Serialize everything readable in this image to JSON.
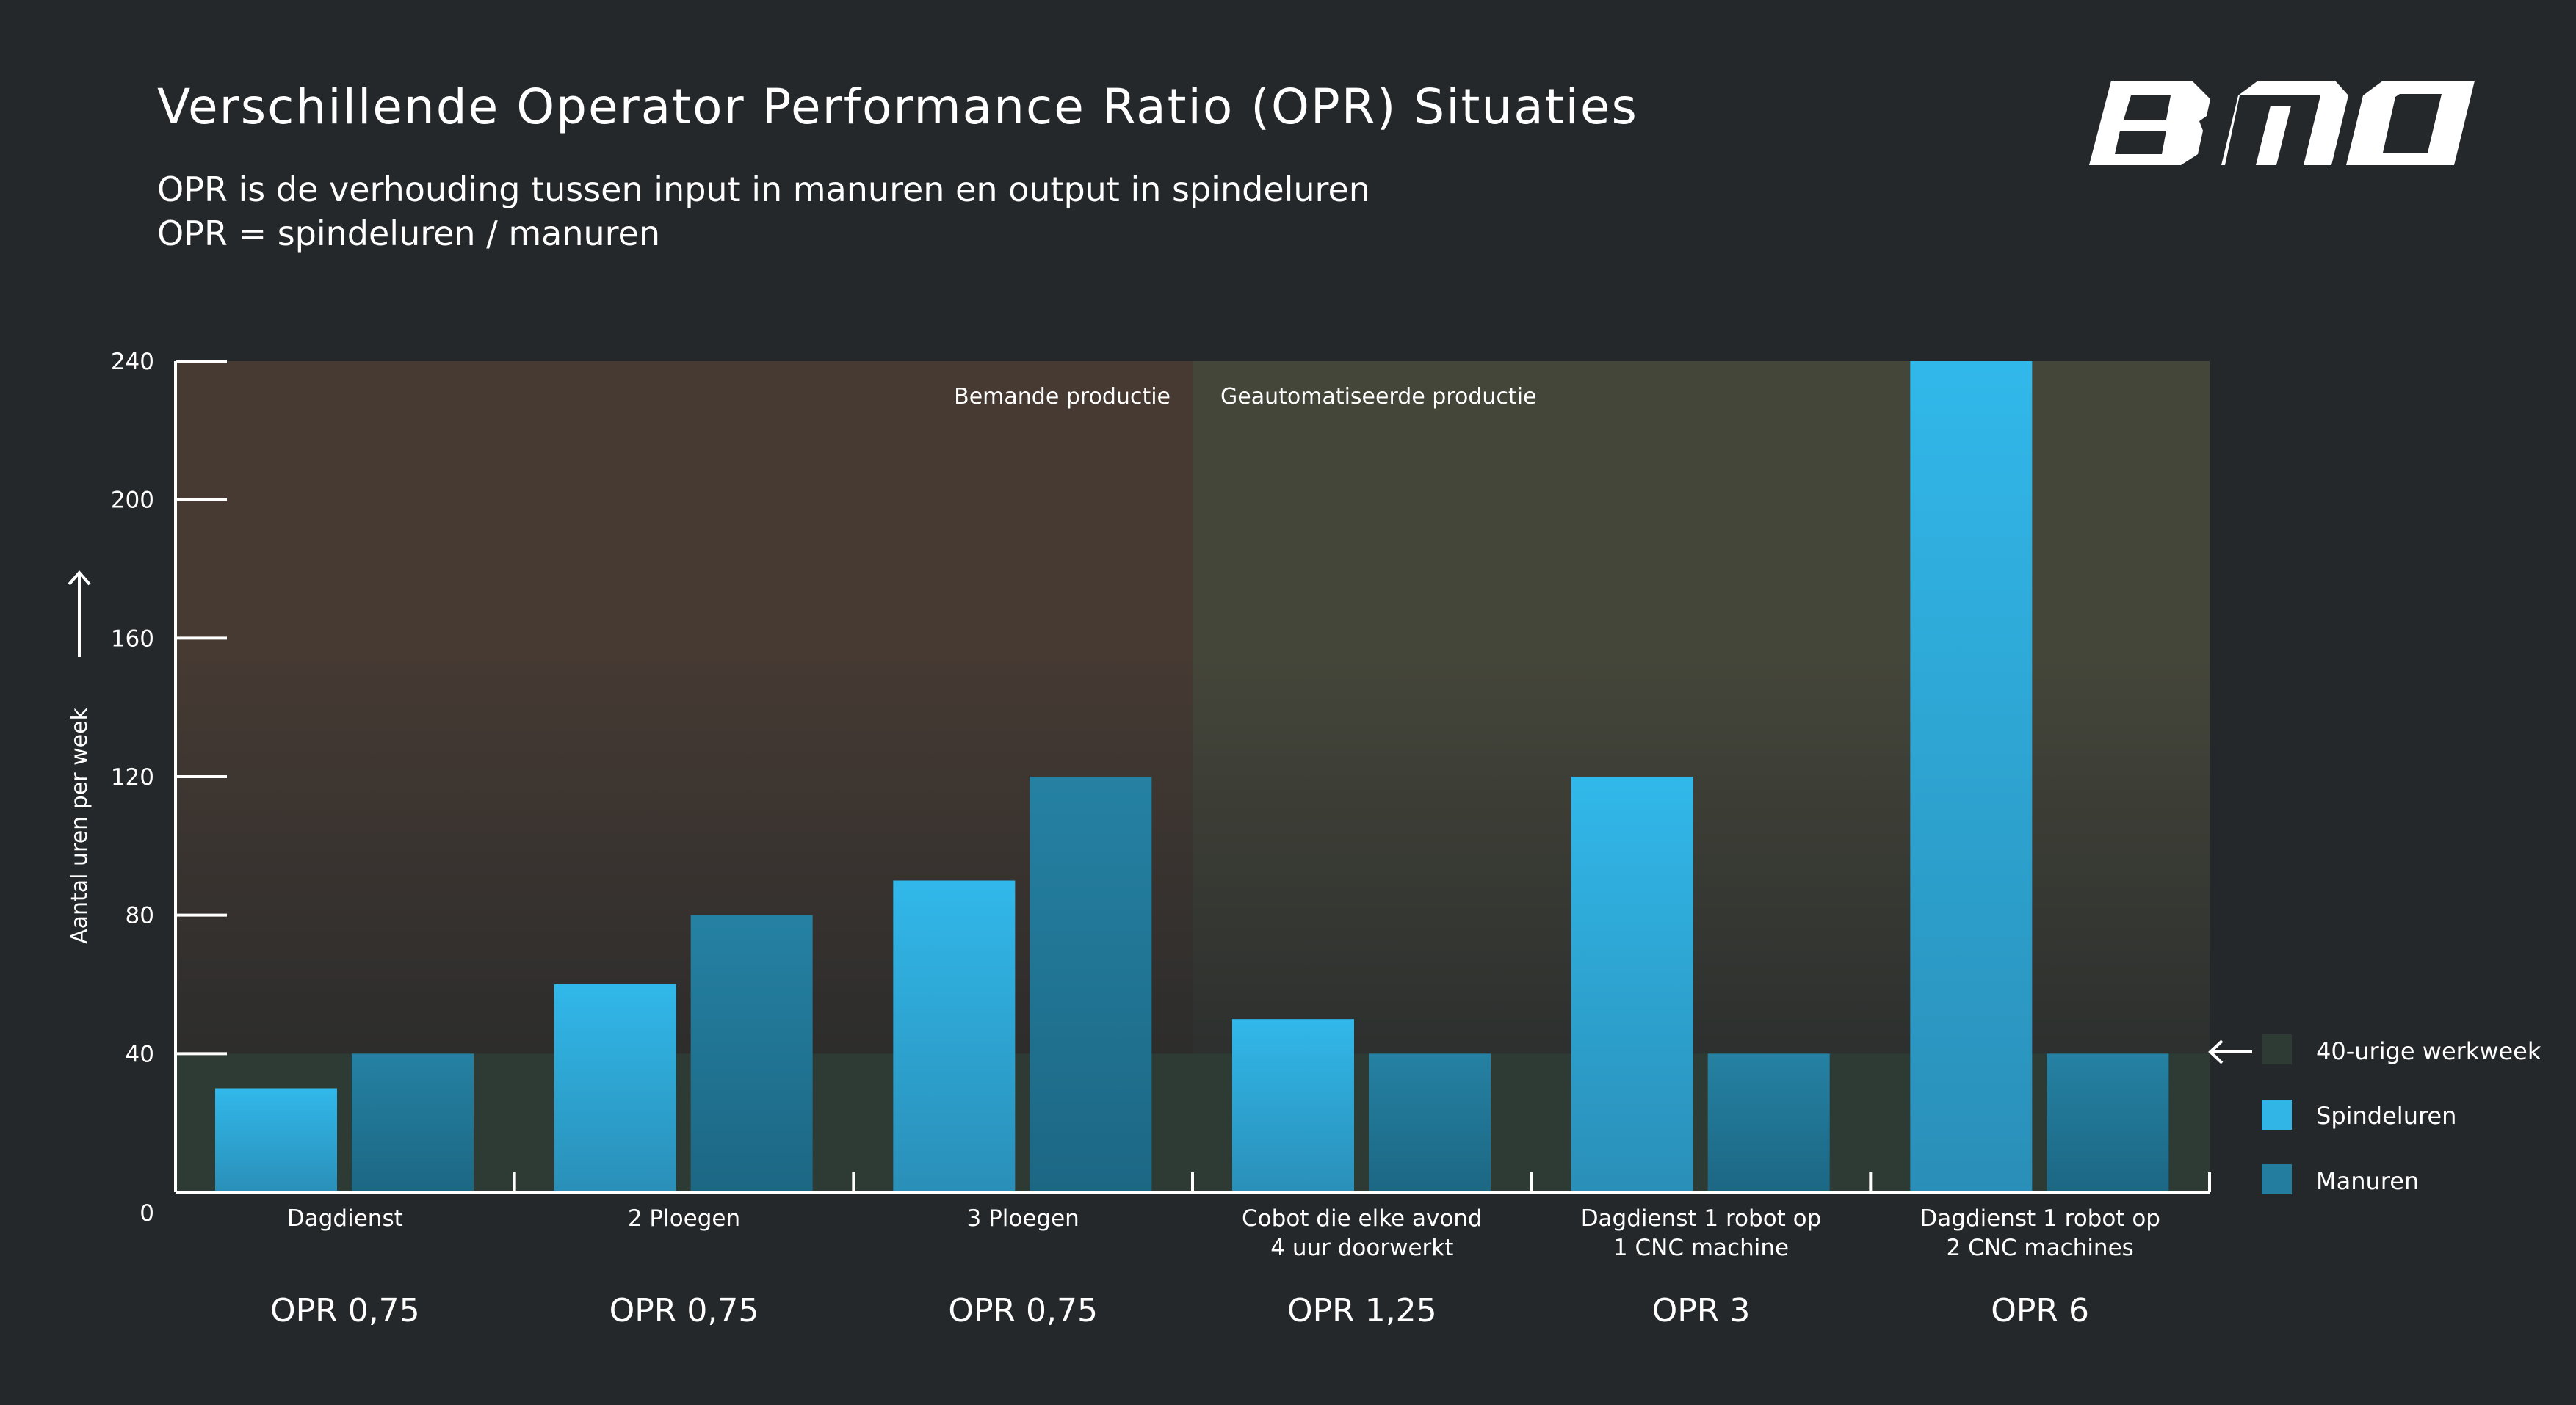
{
  "header": {
    "title": "Verschillende Operator Performance Ratio (OPR) Situaties",
    "subtitle_line1": "OPR is de verhouding tussen input in manuren en output in spindeluren",
    "subtitle_line2": "OPR = spindeluren / manuren",
    "logo_text": "BMO"
  },
  "colors": {
    "background": "#24282a",
    "spindeluren": "#31b5e6",
    "manuren": "#237d9e",
    "werkweek": "#2e3b35",
    "bemande_region": "#463a33",
    "geautomatiseerde_region": "#45463a"
  },
  "chart_data": {
    "type": "bar",
    "ylabel": "Aantal uren per week",
    "ylim": [
      0,
      240
    ],
    "yticks": [
      "0",
      "40",
      "80",
      "120",
      "160",
      "200",
      "240"
    ],
    "grid": false,
    "legend_position": "right",
    "categories": [
      [
        "Dagdienst"
      ],
      [
        "2 Ploegen"
      ],
      [
        "3 Ploegen"
      ],
      [
        "Cobot die elke avond",
        "4 uur doorwerkt"
      ],
      [
        "Dagdienst 1 robot op",
        "1 CNC machine"
      ],
      [
        "Dagdienst 1 robot op",
        "2 CNC machines"
      ]
    ],
    "opr_labels": [
      "OPR 0,75",
      "OPR 0,75",
      "OPR 0,75",
      "OPR 1,25",
      "OPR 3",
      "OPR 6"
    ],
    "series": [
      {
        "name": "Spindeluren",
        "values": [
          30,
          60,
          90,
          50,
          120,
          240
        ]
      },
      {
        "name": "Manuren",
        "values": [
          40,
          80,
          120,
          40,
          40,
          40
        ]
      }
    ],
    "reference_band": {
      "name": "40-urige werkweek",
      "value": 40
    },
    "regions": [
      {
        "label": "Bemande productie",
        "from_category": 0,
        "to_category": 2
      },
      {
        "label": "Geautomatiseerde productie",
        "from_category": 3,
        "to_category": 5
      }
    ],
    "legend": [
      "40-urige werkweek",
      "Spindeluren",
      "Manuren"
    ]
  }
}
